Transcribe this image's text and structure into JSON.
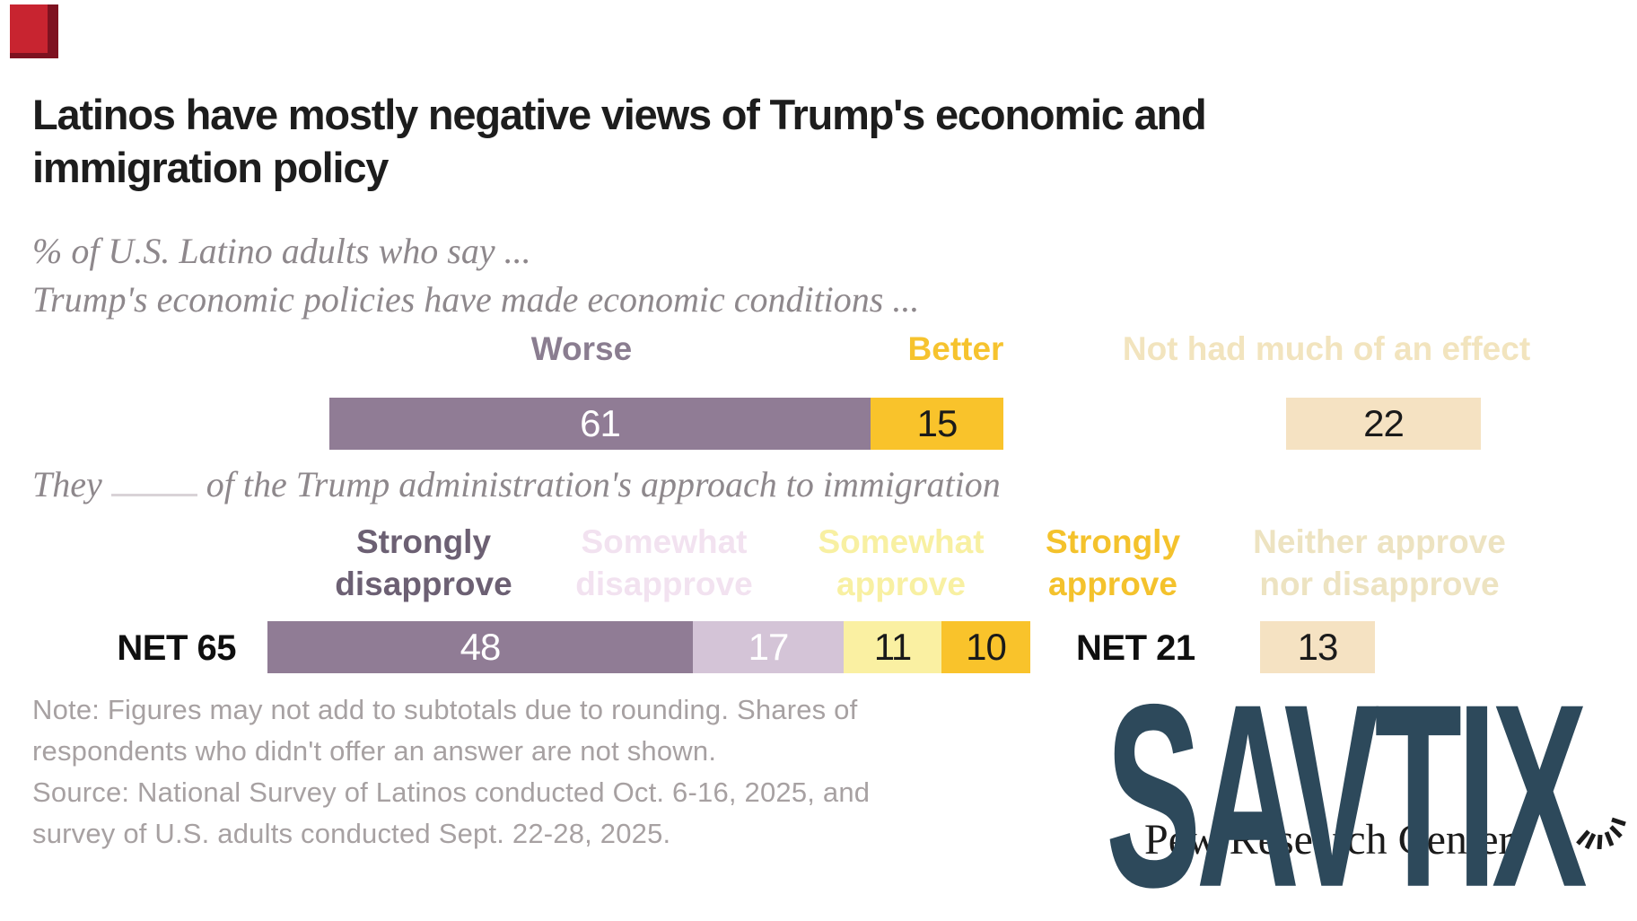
{
  "corner_marker": {
    "color": "#C82430",
    "edge_color": "#7E1220"
  },
  "title": {
    "line1": "Latinos have mostly negative views of Trump's economic and",
    "line2": "immigration policy"
  },
  "subtitle": "% of U.S. Latino adults who say ...",
  "chart_data": [
    {
      "type": "bar",
      "orientation": "horizontal_stacked",
      "question": "Trump's economic policies have made economic conditions ...",
      "categories": [
        "Worse",
        "Better",
        "Not had much of an effect"
      ],
      "values": [
        61,
        15,
        22
      ],
      "bar_colors": [
        "#907C95",
        "#F9C32B",
        "#F5E2C2"
      ],
      "label_colors": [
        "#8A7D90",
        "#F6C32E",
        "#F2E4BE"
      ],
      "value_colors": [
        "#FFFFFF",
        "#1A1A1A",
        "#1A1A1A"
      ],
      "layout_hint": "first two categories stacked in one bar; third drawn as separate bar to the right"
    },
    {
      "type": "bar",
      "orientation": "horizontal_stacked",
      "question_pre": "They",
      "question_blank": "____",
      "question_post": "of the Trump administration's approach to immigration",
      "categories": [
        "Strongly disapprove",
        "Somewhat disapprove",
        "Somewhat approve",
        "Strongly approve",
        "Neither approve nor disapprove"
      ],
      "values": [
        48,
        17,
        11,
        10,
        13
      ],
      "bar_colors": [
        "#907C95",
        "#D4C4D7",
        "#FAF0A2",
        "#F9C32B",
        "#F5E2C2"
      ],
      "label_colors": [
        "#6C6073",
        "#F2E2F0",
        "#F8F0A2",
        "#F4C22C",
        "#EDE3C1"
      ],
      "value_colors": [
        "#FFFFFF",
        "#FFFFFF",
        "#1A1A1A",
        "#1A1A1A",
        "#1A1A1A"
      ],
      "labels_two_line": [
        [
          "Strongly",
          "disapprove"
        ],
        [
          "Somewhat",
          "disapprove"
        ],
        [
          "Somewhat",
          "approve"
        ],
        [
          "Strongly",
          "approve"
        ],
        [
          "Neither approve",
          "nor disapprove"
        ]
      ],
      "nets": [
        {
          "label": "NET 65",
          "value": 65
        },
        {
          "label": "NET 21",
          "value": 21
        }
      ],
      "layout_hint": "first four categories stacked in one bar; fifth drawn as separate bar to the right"
    }
  ],
  "notes": {
    "lines": [
      "Note: Figures may not add to subtotals due to rounding. Shares of",
      "respondents who didn't offer an answer are not shown.",
      "Source: National Survey of Latinos conducted Oct. 6-16, 2025, and",
      "survey of U.S. adults conducted Sept. 22-28, 2025."
    ]
  },
  "branding": {
    "name": "Pew Research Center"
  },
  "watermark": {
    "text": "SAVTIX",
    "color": "#2D495B"
  }
}
